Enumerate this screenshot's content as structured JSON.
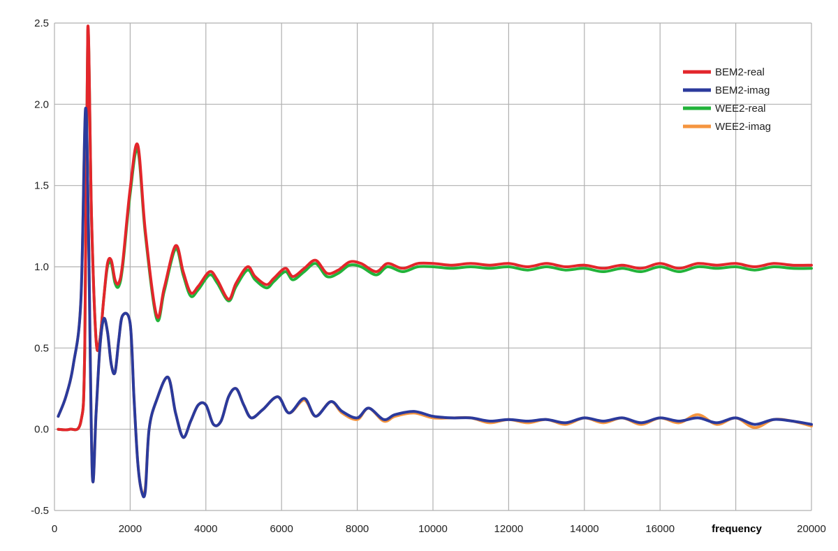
{
  "chart_data": {
    "type": "line",
    "title": "",
    "xlabel": "frequency",
    "ylabel": "",
    "xlim": [
      0,
      20000
    ],
    "ylim": [
      -0.5,
      2.5
    ],
    "xticks": [
      0,
      2000,
      4000,
      6000,
      8000,
      10000,
      12000,
      14000,
      16000,
      18000,
      20000
    ],
    "yticks": [
      -0.5,
      0.0,
      0.5,
      1.0,
      1.5,
      2.0,
      2.5
    ],
    "xtick_labels": [
      "0",
      "2000",
      "4000",
      "6000",
      "8000",
      "10000",
      "12000",
      "14000",
      "16000",
      "18000",
      "20000"
    ],
    "ytick_labels": [
      "-0.5",
      "0.0",
      "0.5",
      "1.0",
      "1.5",
      "2.0",
      "2.5"
    ],
    "grid": true,
    "legend_position": "top-right",
    "series": [
      {
        "name": "WEE2-real",
        "color": "#22b33a",
        "x": [
          100,
          400,
          700,
          800,
          880,
          980,
          1100,
          1200,
          1300,
          1400,
          1500,
          1600,
          1700,
          1800,
          2000,
          2200,
          2400,
          2700,
          2900,
          3200,
          3400,
          3600,
          3800,
          4100,
          4300,
          4600,
          4800,
          5100,
          5300,
          5600,
          5800,
          6100,
          6300,
          6600,
          6900,
          7200,
          7500,
          7800,
          8100,
          8500,
          8800,
          9200,
          9600,
          10000,
          10500,
          11000,
          11500,
          12000,
          12500,
          13000,
          13500,
          14000,
          14500,
          15000,
          15500,
          16000,
          16500,
          17000,
          17500,
          18000,
          18500,
          19000,
          19500,
          20000
        ],
        "y": [
          0.0,
          0.0,
          0.05,
          0.5,
          2.45,
          1.3,
          0.55,
          0.55,
          0.8,
          1.0,
          1.02,
          0.9,
          0.88,
          1.0,
          1.45,
          1.72,
          1.2,
          0.68,
          0.85,
          1.11,
          0.95,
          0.82,
          0.86,
          0.95,
          0.9,
          0.79,
          0.88,
          0.98,
          0.92,
          0.87,
          0.91,
          0.97,
          0.92,
          0.97,
          1.02,
          0.94,
          0.96,
          1.01,
          1.0,
          0.95,
          1.0,
          0.97,
          1.0,
          1.0,
          0.99,
          1.0,
          0.99,
          1.0,
          0.98,
          1.0,
          0.98,
          0.99,
          0.97,
          0.99,
          0.97,
          1.0,
          0.97,
          1.0,
          0.99,
          1.0,
          0.98,
          1.0,
          0.99,
          0.99
        ]
      },
      {
        "name": "BEM2-real",
        "color": "#e3262b",
        "x": [
          100,
          400,
          700,
          800,
          880,
          980,
          1100,
          1200,
          1300,
          1400,
          1500,
          1600,
          1700,
          1800,
          2000,
          2200,
          2400,
          2700,
          2900,
          3200,
          3400,
          3600,
          3800,
          4100,
          4300,
          4600,
          4800,
          5100,
          5300,
          5600,
          5800,
          6100,
          6300,
          6600,
          6900,
          7200,
          7500,
          7800,
          8100,
          8500,
          8800,
          9200,
          9600,
          10000,
          10500,
          11000,
          11500,
          12000,
          12500,
          13000,
          13500,
          14000,
          14500,
          15000,
          15500,
          16000,
          16500,
          17000,
          17500,
          18000,
          18500,
          19000,
          19500,
          20000
        ],
        "y": [
          0.0,
          0.0,
          0.05,
          0.5,
          2.47,
          1.3,
          0.55,
          0.55,
          0.8,
          1.02,
          1.04,
          0.92,
          0.9,
          1.02,
          1.48,
          1.75,
          1.22,
          0.7,
          0.87,
          1.13,
          0.97,
          0.84,
          0.88,
          0.97,
          0.92,
          0.8,
          0.9,
          1.0,
          0.94,
          0.89,
          0.93,
          0.99,
          0.94,
          0.99,
          1.04,
          0.96,
          0.98,
          1.03,
          1.02,
          0.97,
          1.02,
          0.99,
          1.02,
          1.02,
          1.01,
          1.02,
          1.01,
          1.02,
          1.0,
          1.02,
          1.0,
          1.01,
          0.99,
          1.01,
          0.99,
          1.02,
          0.99,
          1.02,
          1.01,
          1.02,
          1.0,
          1.02,
          1.01,
          1.01
        ]
      },
      {
        "name": "WEE2-imag",
        "color": "#f5953f",
        "x": [
          100,
          300,
          500,
          700,
          820,
          900,
          1000,
          1100,
          1200,
          1300,
          1400,
          1500,
          1600,
          1700,
          1800,
          2000,
          2100,
          2200,
          2300,
          2400,
          2500,
          2700,
          3000,
          3200,
          3400,
          3600,
          3800,
          4000,
          4200,
          4400,
          4600,
          4800,
          5000,
          5200,
          5500,
          5900,
          6200,
          6600,
          6900,
          7300,
          7600,
          8000,
          8300,
          8700,
          9000,
          9500,
          10000,
          10500,
          11000,
          11500,
          12000,
          12500,
          13000,
          13500,
          14000,
          14500,
          15000,
          15500,
          16000,
          16500,
          17000,
          17500,
          18000,
          18500,
          19000,
          19500,
          20000
        ],
        "y": [
          0.08,
          0.2,
          0.4,
          0.8,
          1.95,
          1.2,
          -0.28,
          0.1,
          0.5,
          0.68,
          0.6,
          0.4,
          0.35,
          0.55,
          0.7,
          0.65,
          0.2,
          -0.2,
          -0.38,
          -0.36,
          0.0,
          0.18,
          0.32,
          0.1,
          -0.05,
          0.05,
          0.15,
          0.15,
          0.03,
          0.05,
          0.2,
          0.25,
          0.15,
          0.07,
          0.12,
          0.2,
          0.1,
          0.18,
          0.08,
          0.17,
          0.1,
          0.06,
          0.13,
          0.05,
          0.08,
          0.1,
          0.07,
          0.07,
          0.07,
          0.04,
          0.06,
          0.04,
          0.06,
          0.03,
          0.07,
          0.04,
          0.07,
          0.03,
          0.07,
          0.04,
          0.09,
          0.03,
          0.07,
          0.01,
          0.06,
          0.05,
          0.02
        ]
      },
      {
        "name": "BEM2-imag",
        "color": "#2b3a9c",
        "x": [
          100,
          300,
          500,
          700,
          820,
          900,
          1000,
          1100,
          1200,
          1300,
          1400,
          1500,
          1600,
          1700,
          1800,
          2000,
          2100,
          2200,
          2300,
          2400,
          2500,
          2700,
          3000,
          3200,
          3400,
          3600,
          3800,
          4000,
          4200,
          4400,
          4600,
          4800,
          5000,
          5200,
          5500,
          5900,
          6200,
          6600,
          6900,
          7300,
          7600,
          8000,
          8300,
          8700,
          9000,
          9500,
          10000,
          10500,
          11000,
          11500,
          12000,
          12500,
          13000,
          13500,
          14000,
          14500,
          15000,
          15500,
          16000,
          16500,
          17000,
          17500,
          18000,
          18500,
          19000,
          19500,
          20000
        ],
        "y": [
          0.08,
          0.2,
          0.4,
          0.8,
          1.97,
          1.2,
          -0.28,
          0.1,
          0.5,
          0.68,
          0.6,
          0.4,
          0.35,
          0.55,
          0.7,
          0.65,
          0.2,
          -0.2,
          -0.38,
          -0.38,
          0.0,
          0.18,
          0.32,
          0.1,
          -0.05,
          0.05,
          0.15,
          0.15,
          0.03,
          0.05,
          0.2,
          0.25,
          0.15,
          0.07,
          0.12,
          0.2,
          0.1,
          0.19,
          0.08,
          0.17,
          0.11,
          0.07,
          0.13,
          0.06,
          0.09,
          0.11,
          0.08,
          0.07,
          0.07,
          0.05,
          0.06,
          0.05,
          0.06,
          0.04,
          0.07,
          0.05,
          0.07,
          0.04,
          0.07,
          0.05,
          0.07,
          0.04,
          0.07,
          0.03,
          0.06,
          0.05,
          0.03
        ]
      }
    ],
    "legend_order": [
      "BEM2-real",
      "BEM2-imag",
      "WEE2-real",
      "WEE2-imag"
    ]
  }
}
